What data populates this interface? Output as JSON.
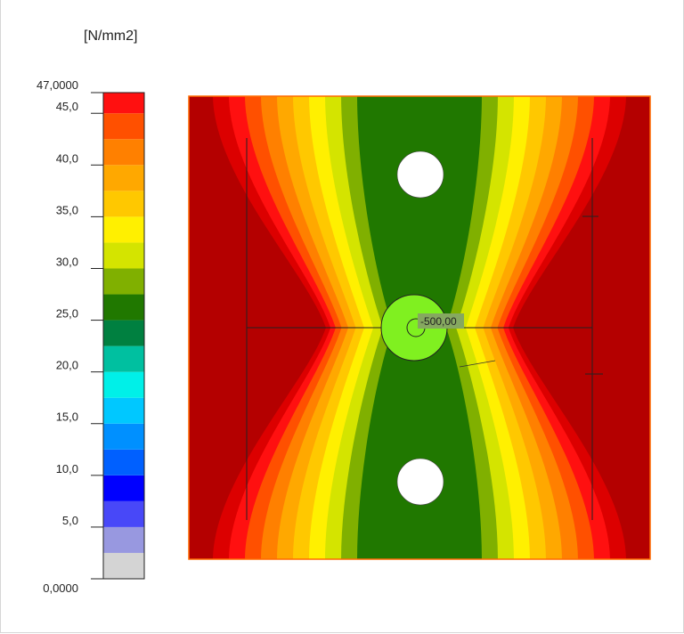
{
  "chart_data": {
    "type": "heatmap",
    "unit_label": "[N/mm2]",
    "scale": {
      "min_label": "0,0000",
      "max_label": "47,0000",
      "min": 0,
      "max": 47,
      "band_edges": [
        0,
        2.5,
        5,
        7.5,
        10,
        12.5,
        15,
        17.5,
        20,
        22.5,
        25,
        27.5,
        30,
        32.5,
        35,
        37.5,
        40,
        42.5,
        45,
        47
      ],
      "band_colors": [
        "#d4d4d4",
        "#9898e0",
        "#4848f8",
        "#0000ff",
        "#0060ff",
        "#0090ff",
        "#00c8ff",
        "#00f0e8",
        "#00c0a0",
        "#008040",
        "#207800",
        "#80b000",
        "#d4e400",
        "#fff000",
        "#ffc800",
        "#ffa800",
        "#ff8000",
        "#ff5000",
        "#ff1010",
        "#dc0000",
        "#b40000"
      ],
      "tick_values": [
        5,
        10,
        15,
        20,
        25,
        30,
        35,
        40,
        45
      ],
      "tick_labels": [
        "5,0",
        "10,0",
        "15,0",
        "20,0",
        "25,0",
        "30,0",
        "35,0",
        "40,0",
        "45,0"
      ]
    },
    "field_colors": [
      "#b40000",
      "#dc0000",
      "#ff1010",
      "#ff5000",
      "#ff8000",
      "#ffa800",
      "#ffc800",
      "#fff000",
      "#d4e400",
      "#80b000",
      "#207800"
    ],
    "center_marker_color": "#80f020",
    "probe": {
      "label": "-500,00",
      "value": -500.0
    }
  }
}
